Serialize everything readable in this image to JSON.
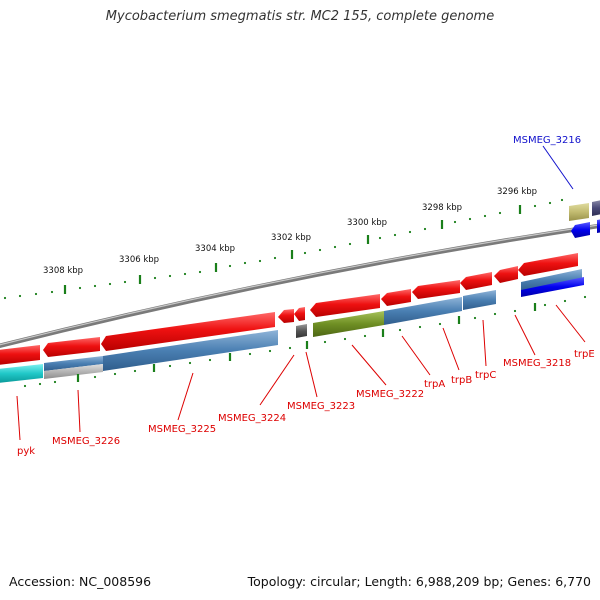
{
  "header": {
    "title": "Mycobacterium smegmatis str. MC2 155, complete genome"
  },
  "footer": {
    "accession": "Accession: NC_008596",
    "summary": "Topology: circular; Length: 6,988,209 bp; Genes: 6,770"
  },
  "colors": {
    "backbone": "#8a8a8a",
    "tick": "#1a7f1a",
    "gene_forward": "#ee1111",
    "label_red": "#dd0000",
    "label_blue": "#1111cc"
  },
  "ruler": {
    "unit": "kbp",
    "ticks": [
      "3296 kbp",
      "3298 kbp",
      "3300 kbp",
      "3302 kbp",
      "3304 kbp",
      "3306 kbp",
      "3308 kbp"
    ]
  },
  "genes": [
    {
      "id": "MSMEG_3216",
      "label": "MSMEG_3216",
      "color": "label_blue"
    },
    {
      "id": "trpE",
      "label": "trpE",
      "color": "label_red"
    },
    {
      "id": "MSMEG_3218",
      "label": "MSMEG_3218",
      "color": "label_red"
    },
    {
      "id": "trpC",
      "label": "trpC",
      "color": "label_red"
    },
    {
      "id": "trpB",
      "label": "trpB",
      "color": "label_red"
    },
    {
      "id": "trpA",
      "label": "trpA",
      "color": "label_red"
    },
    {
      "id": "MSMEG_3222",
      "label": "MSMEG_3222",
      "color": "label_red"
    },
    {
      "id": "MSMEG_3223",
      "label": "MSMEG_3223",
      "color": "label_red"
    },
    {
      "id": "MSMEG_3224",
      "label": "MSMEG_3224",
      "color": "label_red"
    },
    {
      "id": "MSMEG_3225",
      "label": "MSMEG_3225",
      "color": "label_red"
    },
    {
      "id": "MSMEG_3226",
      "label": "MSMEG_3226",
      "color": "label_red"
    },
    {
      "id": "pyk",
      "label": "pyk",
      "color": "label_red"
    }
  ]
}
